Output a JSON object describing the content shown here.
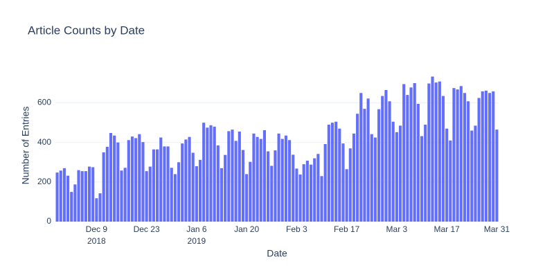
{
  "chart_data": {
    "type": "bar",
    "title": "Article Counts by Date",
    "xlabel": "Date",
    "ylabel": "Number of Entries",
    "color": "#636efa",
    "grid": true,
    "x": [
      "2018-11-28",
      "2018-11-29",
      "2018-11-30",
      "2018-12-01",
      "2018-12-02",
      "2018-12-03",
      "2018-12-04",
      "2018-12-05",
      "2018-12-06",
      "2018-12-07",
      "2018-12-08",
      "2018-12-09",
      "2018-12-10",
      "2018-12-11",
      "2018-12-12",
      "2018-12-13",
      "2018-12-14",
      "2018-12-15",
      "2018-12-16",
      "2018-12-17",
      "2018-12-18",
      "2018-12-19",
      "2018-12-20",
      "2018-12-21",
      "2018-12-22",
      "2018-12-23",
      "2018-12-24",
      "2018-12-25",
      "2018-12-26",
      "2018-12-27",
      "2018-12-28",
      "2018-12-29",
      "2018-12-30",
      "2018-12-31",
      "2019-01-01",
      "2019-01-02",
      "2019-01-03",
      "2019-01-04",
      "2019-01-05",
      "2019-01-06",
      "2019-01-07",
      "2019-01-08",
      "2019-01-09",
      "2019-01-10",
      "2019-01-11",
      "2019-01-12",
      "2019-01-13",
      "2019-01-14",
      "2019-01-15",
      "2019-01-16",
      "2019-01-17",
      "2019-01-18",
      "2019-01-19",
      "2019-01-20",
      "2019-01-21",
      "2019-01-22",
      "2019-01-23",
      "2019-01-24",
      "2019-01-25",
      "2019-01-26",
      "2019-01-27",
      "2019-01-28",
      "2019-01-29",
      "2019-01-30",
      "2019-01-31",
      "2019-02-01",
      "2019-02-02",
      "2019-02-03",
      "2019-02-04",
      "2019-02-05",
      "2019-02-06",
      "2019-02-07",
      "2019-02-08",
      "2019-02-09",
      "2019-02-10",
      "2019-02-11",
      "2019-02-12",
      "2019-02-13",
      "2019-02-14",
      "2019-02-15",
      "2019-02-16",
      "2019-02-17",
      "2019-02-18",
      "2019-02-19",
      "2019-02-20",
      "2019-02-21",
      "2019-02-22",
      "2019-02-23",
      "2019-02-24",
      "2019-02-25",
      "2019-02-26",
      "2019-02-27",
      "2019-02-28",
      "2019-03-01",
      "2019-03-02",
      "2019-03-03",
      "2019-03-04",
      "2019-03-05",
      "2019-03-06",
      "2019-03-07",
      "2019-03-08",
      "2019-03-09",
      "2019-03-10",
      "2019-03-11",
      "2019-03-12",
      "2019-03-13",
      "2019-03-14",
      "2019-03-15",
      "2019-03-16",
      "2019-03-17",
      "2019-03-18",
      "2019-03-19",
      "2019-03-20",
      "2019-03-21",
      "2019-03-22",
      "2019-03-23",
      "2019-03-24",
      "2019-03-25",
      "2019-03-26",
      "2019-03-27",
      "2019-03-28",
      "2019-03-29",
      "2019-03-30",
      "2019-03-31"
    ],
    "values": [
      248,
      258,
      270,
      232,
      150,
      188,
      260,
      255,
      255,
      278,
      275,
      118,
      143,
      350,
      378,
      448,
      435,
      400,
      258,
      272,
      412,
      430,
      422,
      442,
      402,
      255,
      278,
      365,
      365,
      425,
      380,
      380,
      272,
      240,
      300,
      395,
      415,
      428,
      348,
      280,
      312,
      500,
      475,
      487,
      480,
      385,
      270,
      337,
      457,
      465,
      408,
      455,
      362,
      240,
      302,
      445,
      428,
      418,
      462,
      355,
      282,
      360,
      445,
      418,
      435,
      412,
      338,
      268,
      238,
      290,
      308,
      288,
      320,
      342,
      230,
      392,
      490,
      500,
      505,
      470,
      395,
      265,
      370,
      445,
      545,
      650,
      570,
      622,
      442,
      425,
      568,
      635,
      665,
      608,
      505,
      452,
      485,
      695,
      640,
      678,
      700,
      595,
      432,
      490,
      698,
      733,
      703,
      708,
      635,
      470,
      410,
      675,
      668,
      685,
      650,
      608,
      460,
      485,
      625,
      658,
      662,
      650,
      658,
      465
    ],
    "xlim": [
      "2018-11-27T12:00:00Z",
      "2019-03-31T12:00:00Z"
    ],
    "xticks": [
      {
        "value": "2018-12-09",
        "label": "Dec 9",
        "year": "2018"
      },
      {
        "value": "2018-12-23",
        "label": "Dec 23"
      },
      {
        "value": "2019-01-06",
        "label": "Jan 6",
        "year": "2019"
      },
      {
        "value": "2019-01-20",
        "label": "Jan 20"
      },
      {
        "value": "2019-02-03",
        "label": "Feb 3"
      },
      {
        "value": "2019-02-17",
        "label": "Feb 17"
      },
      {
        "value": "2019-03-03",
        "label": "Mar 3"
      },
      {
        "value": "2019-03-17",
        "label": "Mar 17"
      },
      {
        "value": "2019-03-31",
        "label": "Mar 31"
      }
    ],
    "ylim": [
      0,
      770
    ],
    "yticks": [
      0,
      200,
      400,
      600
    ]
  }
}
